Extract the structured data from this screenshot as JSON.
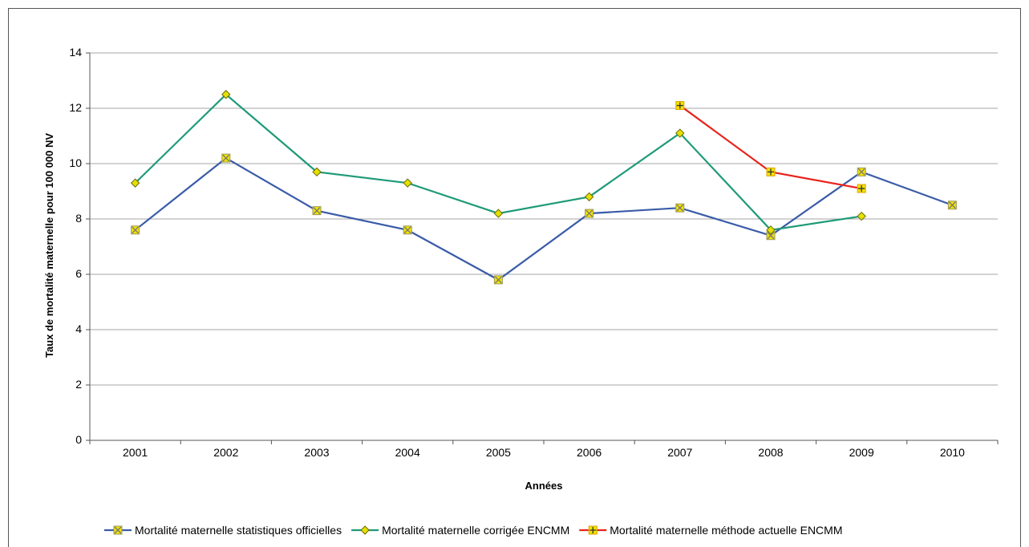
{
  "chart_data": {
    "type": "line",
    "title": "",
    "xlabel": "Années",
    "ylabel": "Taux de mortalité maternelle pour 100 000 NV",
    "categories": [
      "2001",
      "2002",
      "2003",
      "2004",
      "2005",
      "2006",
      "2007",
      "2008",
      "2009",
      "2010"
    ],
    "ylim": [
      0,
      14
    ],
    "yticks": [
      0,
      2,
      4,
      6,
      8,
      10,
      12,
      14
    ],
    "grid": true,
    "legend_position": "bottom",
    "series": [
      {
        "name": "Mortalité maternelle statistiques officielles",
        "color": "#3a5ba8",
        "marker": "square-x",
        "values": [
          7.6,
          10.2,
          8.3,
          7.6,
          5.8,
          8.2,
          8.4,
          7.4,
          9.7,
          8.5
        ]
      },
      {
        "name": "Mortalité maternelle corrigée ENCMM",
        "color": "#1e9a78",
        "marker": "diamond",
        "values": [
          9.3,
          12.5,
          9.7,
          9.3,
          8.2,
          8.8,
          11.1,
          7.6,
          8.1,
          null
        ]
      },
      {
        "name": "Mortalité maternelle méthode actuelle ENCMM",
        "color": "#e8231c",
        "marker": "square-plus",
        "values": [
          null,
          null,
          null,
          null,
          null,
          null,
          12.1,
          9.7,
          9.1,
          null
        ]
      }
    ]
  }
}
